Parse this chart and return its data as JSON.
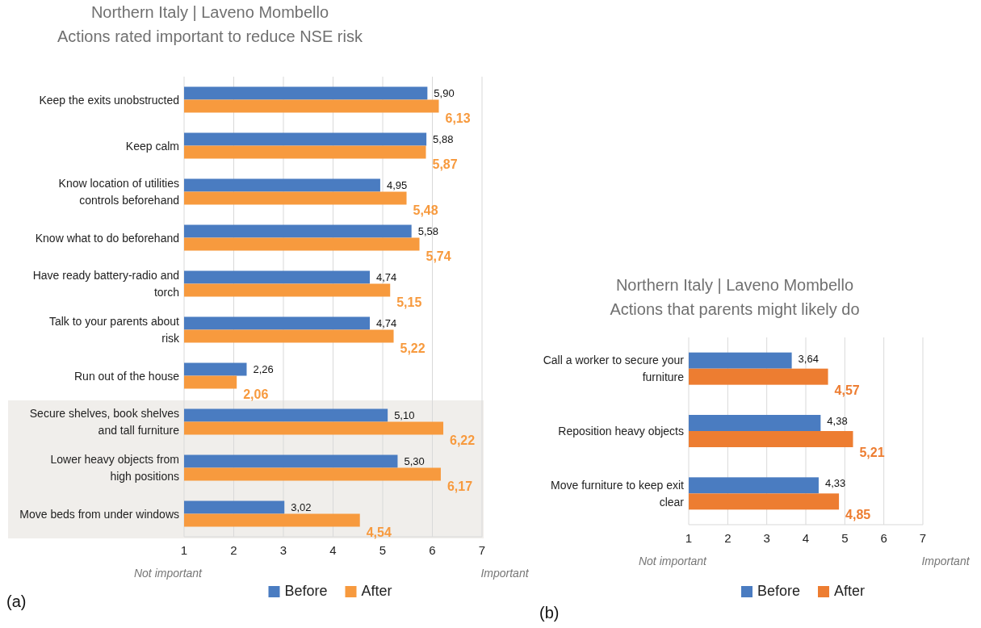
{
  "chart_data": [
    {
      "type": "bar",
      "orientation": "horizontal",
      "title": "Northern Italy | Laveno Mombello",
      "subtitle": "Actions rated important to reduce NSE risk",
      "categories": [
        "Keep the exits unobstructed",
        "Keep calm",
        "Know location of utilities controls beforehand",
        "Know what to do beforehand",
        "Have ready battery-radio and torch",
        "Talk to your parents about risk",
        "Run out of the house",
        "Secure shelves, book shelves and tall furniture",
        "Lower heavy objects from high positions",
        "Move beds from under windows"
      ],
      "series": [
        {
          "name": "Before",
          "color": "#4a7cc1",
          "values": [
            5.9,
            5.88,
            4.95,
            5.58,
            4.74,
            4.74,
            2.26,
            5.1,
            5.3,
            3.02
          ],
          "value_labels": [
            "5,90",
            "5,88",
            "4,95",
            "5,58",
            "4,74",
            "4,74",
            "2,26",
            "5,10",
            "5,30",
            "3,02"
          ]
        },
        {
          "name": "After",
          "color": "#f79a3e",
          "values": [
            6.13,
            5.87,
            5.48,
            5.74,
            5.15,
            5.22,
            2.06,
            6.22,
            6.17,
            4.54
          ],
          "value_labels": [
            "6,13",
            "5,87",
            "5,48",
            "5,74",
            "5,15",
            "5,22",
            "2,06",
            "6,22",
            "6,17",
            "4,54"
          ]
        }
      ],
      "xlim": [
        1,
        7
      ],
      "xticks": [
        1,
        2,
        3,
        4,
        5,
        6,
        7
      ],
      "grid": "x",
      "legend": "bottom",
      "bands": [
        {
          "axis": "y",
          "from": "Secure shelves, book shelves and tall furniture",
          "to": "Move beds from under windows",
          "color": "#f0eeeb"
        }
      ],
      "annotations": [
        "Not important",
        "Important",
        "(a)"
      ]
    },
    {
      "type": "bar",
      "orientation": "horizontal",
      "title": "Northern Italy | Laveno Mombello",
      "subtitle": "Actions that parents might likely do",
      "categories": [
        "Call a worker to secure your furniture",
        "Reposition heavy objects",
        "Move furniture to keep exit clear"
      ],
      "series": [
        {
          "name": "Before",
          "color": "#4a7cc1",
          "values": [
            3.64,
            4.38,
            4.33
          ],
          "value_labels": [
            "3,64",
            "4,38",
            "4,33"
          ]
        },
        {
          "name": "After",
          "color": "#ed7d31",
          "values": [
            4.57,
            5.21,
            4.85
          ],
          "value_labels": [
            "4,57",
            "5,21",
            "4,85"
          ]
        }
      ],
      "xlim": [
        1,
        7
      ],
      "xticks": [
        1,
        2,
        3,
        4,
        5,
        6,
        7
      ],
      "grid": "x",
      "legend": "bottom",
      "annotations": [
        "Not important",
        "Important",
        "(b)"
      ]
    }
  ]
}
